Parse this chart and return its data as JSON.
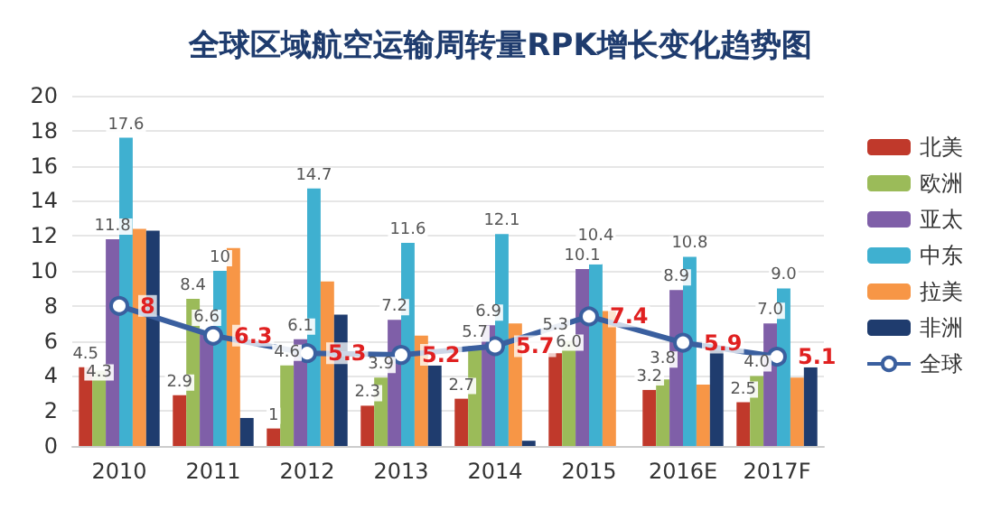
{
  "chart_data": {
    "type": "bar",
    "title": "全球区域航空运输周转量RPK增长变化趋势图",
    "categories": [
      "2010",
      "2011",
      "2012",
      "2013",
      "2014",
      "2015",
      "2016E",
      "2017F"
    ],
    "series": [
      {
        "name": "北美",
        "color": "#c0392b",
        "values": [
          4.5,
          2.9,
          1,
          2.3,
          2.7,
          5.3,
          3.2,
          2.5
        ],
        "value_labels": [
          "4.5",
          "2.9",
          "1",
          "2.3",
          "2.7",
          "5.3",
          "3.2",
          "2.5"
        ]
      },
      {
        "name": "欧洲",
        "color": "#9bbb59",
        "values": [
          4.3,
          8.4,
          4.6,
          3.9,
          5.7,
          6.0,
          3.8,
          4.0
        ],
        "value_labels": [
          "4.3",
          "8.4",
          "4.6",
          "3.9",
          "5.7",
          "6.0",
          "3.8",
          "4.0"
        ]
      },
      {
        "name": "亚太",
        "color": "#7f5fa8",
        "values": [
          11.8,
          6.6,
          6.1,
          7.2,
          6.9,
          10.1,
          8.9,
          7.0
        ],
        "value_labels": [
          "11.8",
          "6.6",
          "6.1",
          "7.2",
          "6.9",
          "10.1",
          "8.9",
          "7.0"
        ]
      },
      {
        "name": "中东",
        "color": "#3fb0d0",
        "values": [
          17.6,
          10,
          14.7,
          11.6,
          12.1,
          10.4,
          10.8,
          9.0
        ],
        "value_labels": [
          "17.6",
          "10",
          "14.7",
          "11.6",
          "12.1",
          "10.4",
          "10.8",
          "9.0"
        ]
      },
      {
        "name": "拉美",
        "color": "#f79646",
        "values": [
          12.4,
          11.3,
          9.4,
          6.3,
          7.0,
          7.7,
          3.5,
          3.9
        ]
      },
      {
        "name": "非洲",
        "color": "#1f3c6e",
        "values": [
          12.3,
          1.6,
          7.5,
          4.6,
          0.3,
          null,
          5.5,
          4.5
        ]
      },
      {
        "name": "全球",
        "type": "line",
        "color": "#3a5f9f",
        "values": [
          8,
          6.3,
          5.3,
          5.2,
          5.7,
          7.4,
          5.9,
          5.1
        ],
        "value_labels": [
          "8",
          "6.3",
          "5.3",
          "5.2",
          "5.7",
          "7.4",
          "5.9",
          "5.1"
        ]
      }
    ],
    "ylim": [
      0,
      20
    ],
    "yticks": [
      0,
      2,
      4,
      6,
      8,
      10,
      12,
      14,
      16,
      18,
      20
    ],
    "grid": "y",
    "legend": "right",
    "marker": "circle"
  }
}
